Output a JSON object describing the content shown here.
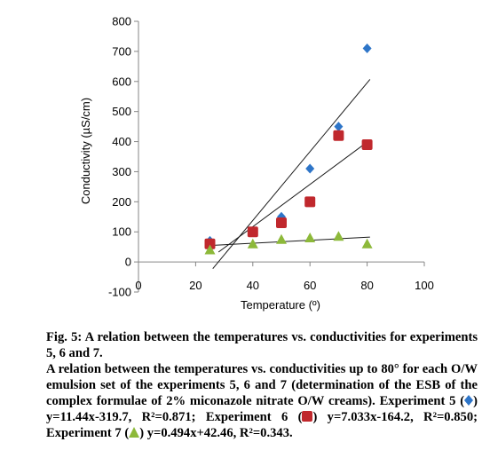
{
  "chart_data": {
    "type": "scatter",
    "title": "",
    "xlabel": "Temperature (º)",
    "ylabel": "Conductivity (µS/cm)",
    "xlim": [
      0,
      100
    ],
    "ylim": [
      -100,
      800
    ],
    "xticks": [
      "0",
      "20",
      "40",
      "60",
      "80",
      "100"
    ],
    "yticks": [
      "-100",
      "0",
      "100",
      "200",
      "300",
      "400",
      "500",
      "600",
      "700",
      "800"
    ],
    "grid": false,
    "legend": "none",
    "series": [
      {
        "marker": "diamond",
        "color": "#2e75c8",
        "x": [
          25,
          40,
          50,
          60,
          70,
          80
        ],
        "y": [
          70,
          100,
          150,
          310,
          450,
          710
        ],
        "trendline": {
          "slope": 11.44,
          "intercept": -319.7,
          "x_range": [
            26,
            81
          ]
        }
      },
      {
        "marker": "square",
        "color": "#c0282d",
        "x": [
          25,
          40,
          50,
          60,
          70,
          80
        ],
        "y": [
          60,
          100,
          130,
          200,
          420,
          390
        ],
        "trendline": {
          "slope": 7.033,
          "intercept": -164.2,
          "x_range": [
            28,
            81
          ]
        }
      },
      {
        "marker": "triangle",
        "color": "#8db93a",
        "x": [
          25,
          40,
          50,
          60,
          70,
          80
        ],
        "y": [
          40,
          60,
          75,
          80,
          85,
          60
        ],
        "trendline": {
          "slope": 0.494,
          "intercept": 42.46,
          "x_range": [
            24,
            81
          ]
        }
      }
    ]
  },
  "caption": {
    "fig_label": "Fig. 5: A relation between the temperatures vs. conductivities for experiments 5, 6 and 7.",
    "body_1": "A relation between the temperatures vs. conductivities up to 80° for each O/W emulsion set of the experiments 5, 6 and 7 (determination of the ESB of the complex formulae of 2% miconazole nitrate O/W creams). Experiment 5 (",
    "body_2": ") y=11.44x-319.7, R²=0.871; Experiment 6 (",
    "body_3": ") y=7.033x-164.2, R²=0.850; Experiment 7 (",
    "body_4": ") y=0.494x+42.46, R²=0.343."
  }
}
